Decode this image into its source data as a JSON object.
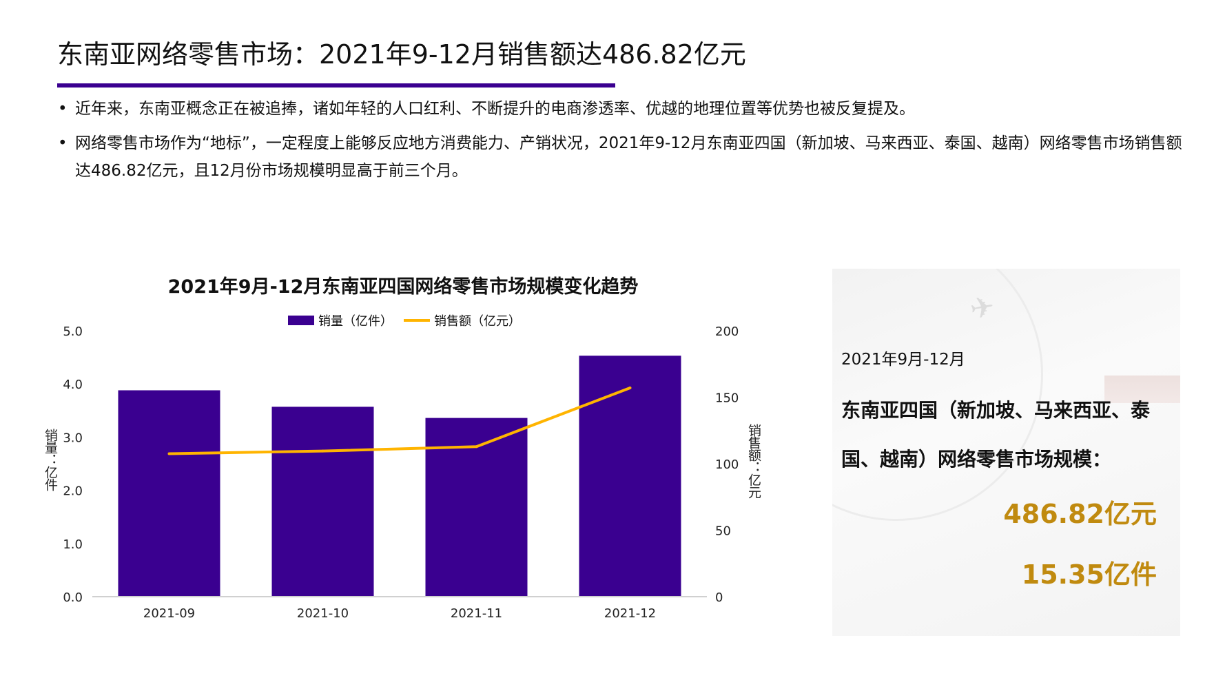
{
  "header": {
    "title": "东南亚网络零售市场：2021年9-12月销售额达486.82亿元",
    "accent_color": "#3a0090"
  },
  "bullets": [
    "近年来，东南亚概念正在被追捧，诸如年轻的人口红利、不断提升的电商渗透率、优越的地理位置等优势也被反复提及。",
    "网络零售市场作为“地标”，一定程度上能够反应地方消费能力、产销状况，2021年9-12月东南亚四国（新加坡、马来西亚、泰国、越南）网络零售市场销售额达486.82亿元，且12月份市场规模明显高于前三个月。"
  ],
  "chart_data": {
    "type": "bar+line",
    "title": "2021年9月-12月东南亚四国网络零售市场规模变化趋势",
    "categories": [
      "2021-09",
      "2021-10",
      "2021-11",
      "2021-12"
    ],
    "series": [
      {
        "name": "销量（亿件）",
        "type": "bar",
        "axis": "left",
        "color": "#3a0090",
        "values": [
          3.88,
          3.57,
          3.36,
          4.53
        ]
      },
      {
        "name": "销售额（亿元）",
        "type": "line",
        "axis": "right",
        "color": "#ffb400",
        "values": [
          107.5,
          109.5,
          112.8,
          157.0
        ]
      }
    ],
    "ylabel_left": "销量：亿件",
    "ylabel_right": "销售额：亿元",
    "ylim_left": [
      0,
      5
    ],
    "ylim_right": [
      0,
      200
    ],
    "yticks_left": [
      "0.0",
      "1.0",
      "2.0",
      "3.0",
      "4.0",
      "5.0"
    ],
    "yticks_right": [
      "0",
      "50",
      "100",
      "150",
      "200"
    ],
    "grid": false,
    "legend_position": "top"
  },
  "panel": {
    "period": "2021年9月-12月",
    "description": "东南亚四国（新加坡、马来西亚、泰国、越南）网络零售市场规模：",
    "sales_value": "486.82亿元",
    "volume_value": "15.35亿件",
    "value_color": "#c08a0f"
  }
}
